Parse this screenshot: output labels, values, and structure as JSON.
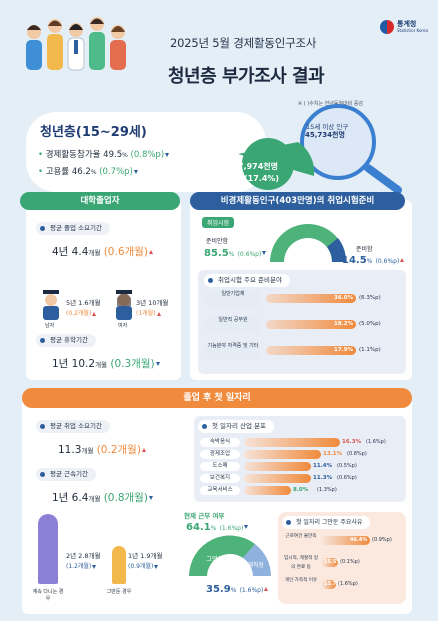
{
  "logo": {
    "name": "통계청",
    "sub": "Statistics Korea"
  },
  "header": {
    "title1": "2025년 5월 경제활동인구조사",
    "title2": "청년층 부가조사 결과"
  },
  "note": "※ (  )수치는 전년동월대비 증감",
  "youth": {
    "title": "청년층(15~29세)",
    "econ_label": "경제활동참가율",
    "econ_val": "49.5",
    "econ_unit": "%",
    "econ_chg": "(0.8%p",
    "emp_label": "고용률",
    "emp_val": "46.2",
    "emp_unit": "%",
    "emp_chg": "(0.7%p",
    "pop_label": "15세 이상 인구",
    "pop_val": "45,734천명",
    "young_val": "7,974천명",
    "young_pct": "(17.4%)"
  },
  "grad": {
    "header": "대학졸업자",
    "avg_label": "평균 졸업 소요기간",
    "avg_val_a": "4년 4.4",
    "avg_val_u": "개월",
    "avg_chg": "(0.6개월",
    "male_val": "5년 1.6개월",
    "male_chg": "(0.2개월",
    "male_lbl": "남자",
    "female_val": "3년 10개월",
    "female_chg": "(1개월",
    "female_lbl": "여자",
    "leave_label": "평균 휴학기간",
    "leave_val_a": "1년 10.2",
    "leave_val_u": "개월",
    "leave_chg": "(0.3개월"
  },
  "prep": {
    "header": "비경제활동인구(403만명)의 취업시험준비",
    "sub": "취업시험",
    "no_label": "준비안함",
    "no_val": "85.5",
    "no_unit": "%",
    "no_chg": "(0.6%p",
    "yes_label": "준비함",
    "yes_val": "14.5",
    "yes_unit": "%",
    "yes_chg": "(0.6%p",
    "fields_label": "취업시험 주요 준비분야",
    "fields": [
      {
        "label": "일반기업체",
        "val": "36.0",
        "chg": "(6.3%p",
        "frac": 0.36
      },
      {
        "label": "일반직 공무원",
        "val": "18.2",
        "chg": "(5.0%p",
        "frac": 0.182
      },
      {
        "label": "기능분야 자격증 및 기타",
        "val": "17.9",
        "chg": "(1.1%p",
        "frac": 0.179
      }
    ]
  },
  "first": {
    "header": "졸업 후 첫 일자리",
    "job_label": "평균 취업 소요기간",
    "job_val": "11.3",
    "job_unit": "개월",
    "job_chg": "(0.2개월",
    "tenure_label": "평균 근속기간",
    "tenure_val_a": "1년 6.4",
    "tenure_val_u": "개월",
    "tenure_chg": "(0.8개월",
    "stay_val": "2년 2.8개월",
    "stay_chg": "(1.2개월",
    "stay_lbl": "계속 다니는 경우",
    "quit_val": "1년 1.9개월",
    "quit_chg": "(0.9개월",
    "quit_lbl": "그만둔 경우",
    "ind_label": "첫 일자리 산업 분포",
    "industries": [
      {
        "label": "숙박음식",
        "val": "16.3",
        "chg": "(1.6%p",
        "frac": 0.163
      },
      {
        "label": "광제조업",
        "val": "13.1",
        "chg": "(0.8%p",
        "frac": 0.131
      },
      {
        "label": "도소매",
        "val": "11.4",
        "chg": "(0.5%p",
        "frac": 0.114
      },
      {
        "label": "보건복지",
        "val": "11.3",
        "chg": "(0.6%p",
        "frac": 0.113
      },
      {
        "label": "교육서비스",
        "val": "8.0",
        "chg": "(1.3%p",
        "frac": 0.08
      }
    ],
    "status_label": "현재 근무 여부",
    "quit_pct": "64.1",
    "quit_pct_chg": "(1.6%p",
    "quit_word": "그만둠",
    "cur_pct": "35.9",
    "cur_pct_chg": "(1.6%p",
    "cur_word": "현재직장",
    "reason_label": "첫 일자리 그만둔 주요사유",
    "reasons": [
      {
        "label": "근로여건 불만족",
        "val": "46.4",
        "chg": "(0.9%p",
        "frac": 0.464
      },
      {
        "label": "임시적, 계절적 일의 완료 등",
        "val": "15.5",
        "chg": "(0.1%p",
        "frac": 0.155
      },
      {
        "label": "개인·가족적 이유",
        "val": "13.7",
        "chg": "(1.6%p",
        "frac": 0.137
      }
    ]
  }
}
